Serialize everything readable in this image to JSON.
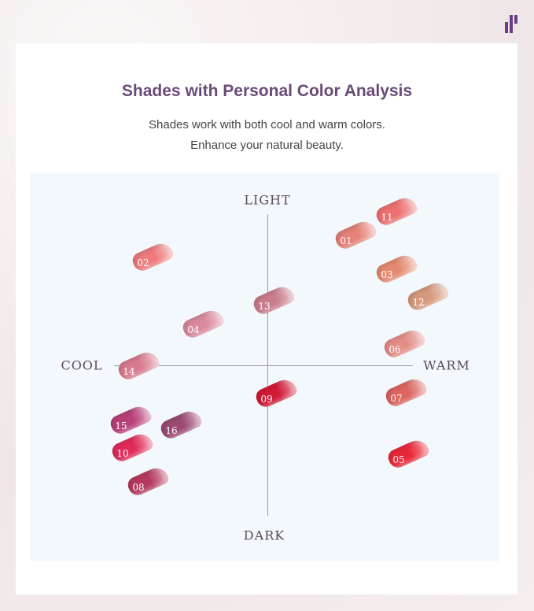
{
  "header": {
    "title": "Shades with Personal Color Analysis",
    "subtitle_1": "Shades work with both cool and warm colors.",
    "subtitle_2": "Enhance your natural beauty."
  },
  "axes": {
    "top": "LIGHT",
    "bottom": "DARK",
    "left": "COOL",
    "right": "WARM"
  },
  "brand_color": "#6a3f86",
  "shades": [
    {
      "label": "01",
      "color": "#e58279"
    },
    {
      "label": "02",
      "color": "#ee7a7c"
    },
    {
      "label": "03",
      "color": "#e48a70"
    },
    {
      "label": "04",
      "color": "#d98a9c"
    },
    {
      "label": "05",
      "color": "#e8283a"
    },
    {
      "label": "06",
      "color": "#e38e86"
    },
    {
      "label": "07",
      "color": "#dc6560"
    },
    {
      "label": "08",
      "color": "#b53a5e"
    },
    {
      "label": "09",
      "color": "#d11a36"
    },
    {
      "label": "10",
      "color": "#e02a5a"
    },
    {
      "label": "11",
      "color": "#ec7072"
    },
    {
      "label": "12",
      "color": "#d59a7e"
    },
    {
      "label": "13",
      "color": "#c97d8c"
    },
    {
      "label": "14",
      "color": "#d87b8e"
    },
    {
      "label": "15",
      "color": "#b8407a"
    },
    {
      "label": "16",
      "color": "#9c4a72"
    }
  ]
}
